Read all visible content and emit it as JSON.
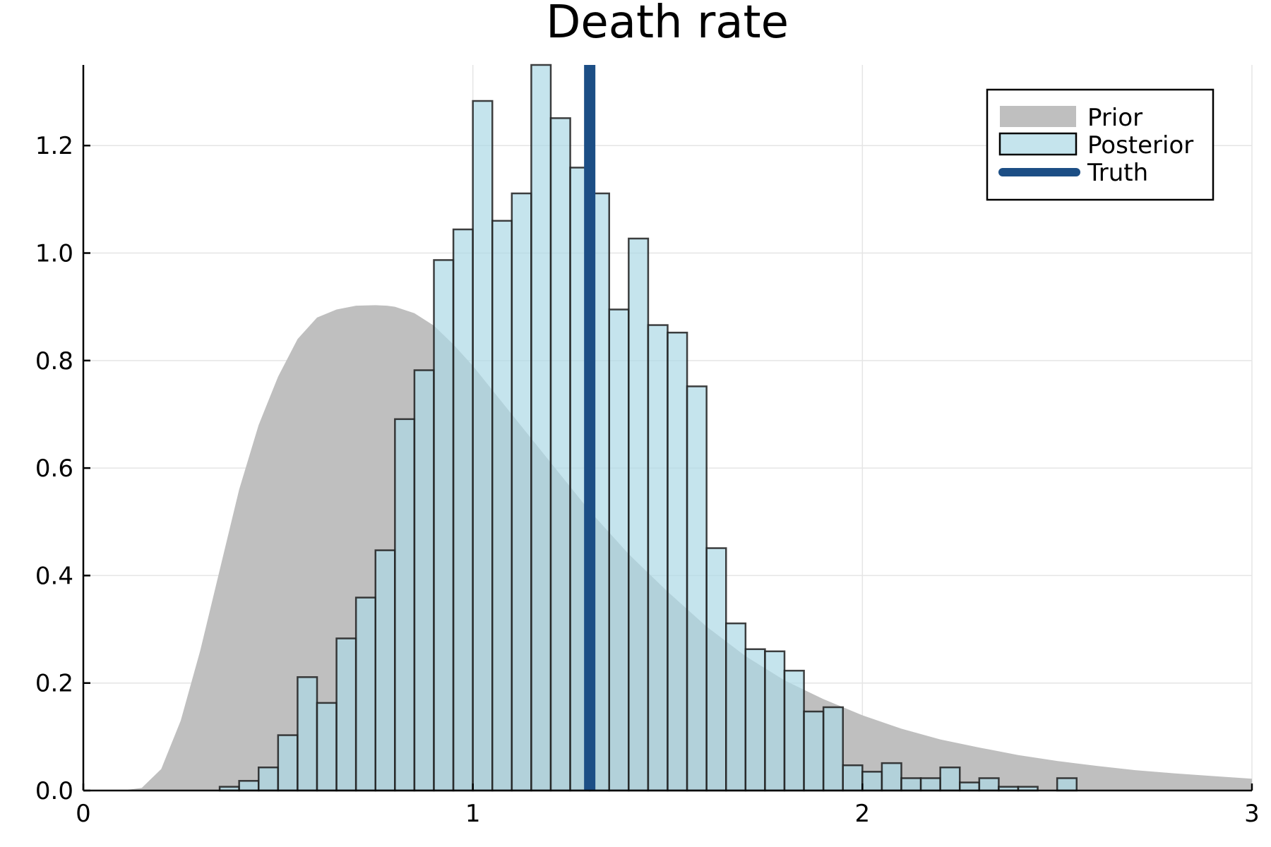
{
  "chart_data": {
    "type": "bar",
    "title": "Death rate",
    "xlabel": "",
    "ylabel": "",
    "xlim": [
      0,
      3
    ],
    "ylim": [
      0,
      1.35
    ],
    "xticks": [
      0,
      1,
      2,
      3
    ],
    "xtick_labels": [
      "0",
      "1",
      "2",
      "3"
    ],
    "yticks": [
      0.0,
      0.2,
      0.4,
      0.6,
      0.8,
      1.0,
      1.2
    ],
    "ytick_labels": [
      "0.0",
      "0.2",
      "0.4",
      "0.6",
      "0.8",
      "1.0",
      "1.2"
    ],
    "grid": true,
    "legend": {
      "placement": "top-right",
      "entries": [
        "Prior",
        "Posterior",
        "Truth"
      ]
    },
    "colors": {
      "prior": "#bfbfbf",
      "posterior": "#add8e6",
      "truth": "#1c4e85",
      "bar_edge": "#1e1e1e"
    },
    "series": [
      {
        "name": "Prior",
        "kind": "area",
        "x": [
          0.0,
          0.1,
          0.15,
          0.2,
          0.25,
          0.3,
          0.35,
          0.4,
          0.45,
          0.5,
          0.55,
          0.6,
          0.65,
          0.7,
          0.75,
          0.78,
          0.8,
          0.85,
          0.9,
          0.95,
          1.0,
          1.1,
          1.2,
          1.3,
          1.4,
          1.5,
          1.6,
          1.7,
          1.8,
          1.9,
          2.0,
          2.1,
          2.2,
          2.3,
          2.4,
          2.5,
          2.6,
          2.7,
          2.8,
          2.9,
          3.0
        ],
        "y": [
          0.0,
          0.0,
          0.005,
          0.04,
          0.13,
          0.26,
          0.41,
          0.56,
          0.68,
          0.77,
          0.84,
          0.88,
          0.895,
          0.902,
          0.903,
          0.902,
          0.9,
          0.888,
          0.865,
          0.83,
          0.79,
          0.7,
          0.61,
          0.52,
          0.44,
          0.37,
          0.305,
          0.25,
          0.205,
          0.17,
          0.14,
          0.115,
          0.095,
          0.08,
          0.066,
          0.055,
          0.046,
          0.038,
          0.032,
          0.027,
          0.022
        ]
      },
      {
        "name": "Posterior",
        "kind": "histogram",
        "bin_width": 0.05,
        "bin_start": [
          0.35,
          0.4,
          0.45,
          0.5,
          0.55,
          0.6,
          0.65,
          0.7,
          0.75,
          0.8,
          0.85,
          0.9,
          0.95,
          1.0,
          1.05,
          1.1,
          1.15,
          1.2,
          1.25,
          1.3,
          1.35,
          1.4,
          1.45,
          1.5,
          1.55,
          1.6,
          1.65,
          1.7,
          1.75,
          1.8,
          1.85,
          1.9,
          1.95,
          2.0,
          2.05,
          2.1,
          2.15,
          2.2,
          2.25,
          2.3,
          2.35,
          2.4,
          2.45,
          2.5
        ],
        "values": [
          0.007,
          0.018,
          0.043,
          0.103,
          0.211,
          0.163,
          0.283,
          0.359,
          0.447,
          0.691,
          0.782,
          0.987,
          1.044,
          1.283,
          1.06,
          1.111,
          1.35,
          1.251,
          1.159,
          1.111,
          0.895,
          1.027,
          0.866,
          0.852,
          0.752,
          0.451,
          0.311,
          0.263,
          0.259,
          0.223,
          0.147,
          0.155,
          0.047,
          0.035,
          0.051,
          0.023,
          0.023,
          0.043,
          0.015,
          0.023,
          0.007,
          0.007,
          0.0,
          0.023
        ]
      },
      {
        "name": "Truth",
        "kind": "vline",
        "x": 1.3
      }
    ]
  }
}
